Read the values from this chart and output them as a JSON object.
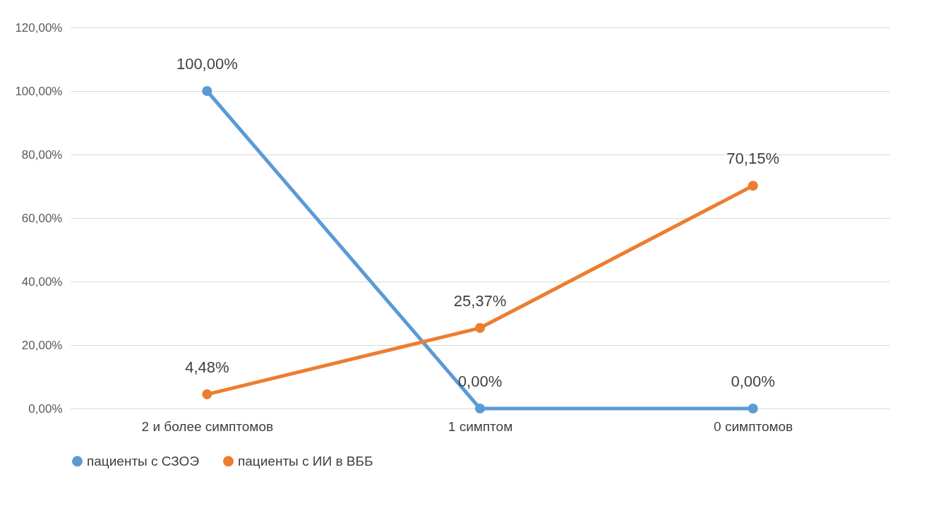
{
  "chart_data": {
    "type": "line",
    "categories": [
      "2 и более симптомов",
      "1 симптом",
      "0 симптомов"
    ],
    "series": [
      {
        "name": "пациенты с СЗОЭ",
        "color": "#5b9bd5",
        "values": [
          100,
          0,
          0
        ],
        "value_labels": [
          "100,00%",
          "0,00%",
          "0,00%"
        ]
      },
      {
        "name": "пациенты с ИИ в ВББ",
        "color": "#ed7d31",
        "values": [
          4.48,
          25.37,
          70.15
        ],
        "value_labels": [
          "4,48%",
          "25,37%",
          "70,15%"
        ]
      }
    ],
    "ylim": [
      0,
      120
    ],
    "yticks": [
      {
        "value": 0,
        "label": "0,00%"
      },
      {
        "value": 20,
        "label": "20,00%"
      },
      {
        "value": 40,
        "label": "40,00%"
      },
      {
        "value": 60,
        "label": "60,00%"
      },
      {
        "value": 80,
        "label": "80,00%"
      },
      {
        "value": 100,
        "label": "100,00%"
      },
      {
        "value": 120,
        "label": "120,00%"
      }
    ],
    "grid": "y",
    "legend": "bottom",
    "marker": "circle",
    "line_style": "solid"
  }
}
